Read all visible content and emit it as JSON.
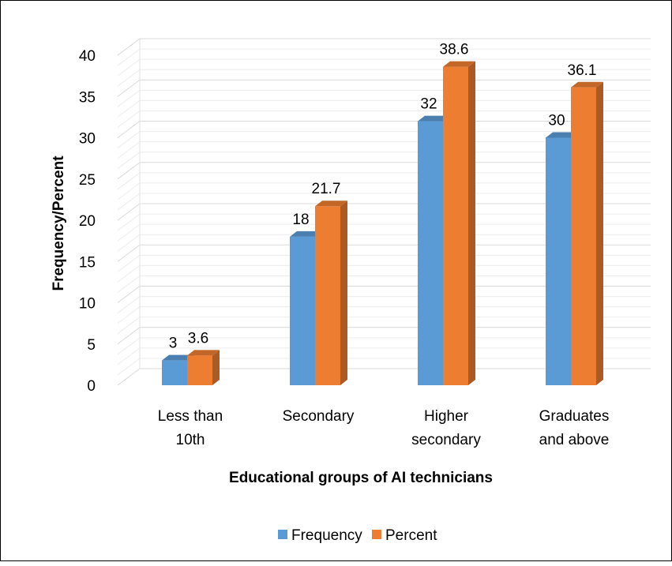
{
  "chart_data": {
    "type": "bar",
    "title": "",
    "xlabel": "Educational groups of AI technicians",
    "ylabel": "Frequency/Percent",
    "categories": [
      [
        "Less than",
        "10th"
      ],
      [
        "Secondary"
      ],
      [
        "Higher",
        "secondary"
      ],
      [
        "Graduates",
        "and above"
      ]
    ],
    "series": [
      {
        "name": "Frequency",
        "values": [
          3,
          18,
          32,
          30
        ],
        "labels": [
          "3",
          "18",
          "32",
          "30"
        ],
        "color": "#5b9bd5"
      },
      {
        "name": "Percent",
        "values": [
          3.6,
          21.7,
          38.6,
          36.1
        ],
        "labels": [
          "3.6",
          "21.7",
          "38.6",
          "36.1"
        ],
        "color": "#ed7d31"
      }
    ],
    "ylim": [
      0,
      40
    ],
    "yticks": [
      "0",
      "5",
      "10",
      "15",
      "20",
      "25",
      "30",
      "35",
      "40"
    ],
    "grid": true,
    "legend_position": "bottom",
    "style": "3d-clustered-column"
  }
}
